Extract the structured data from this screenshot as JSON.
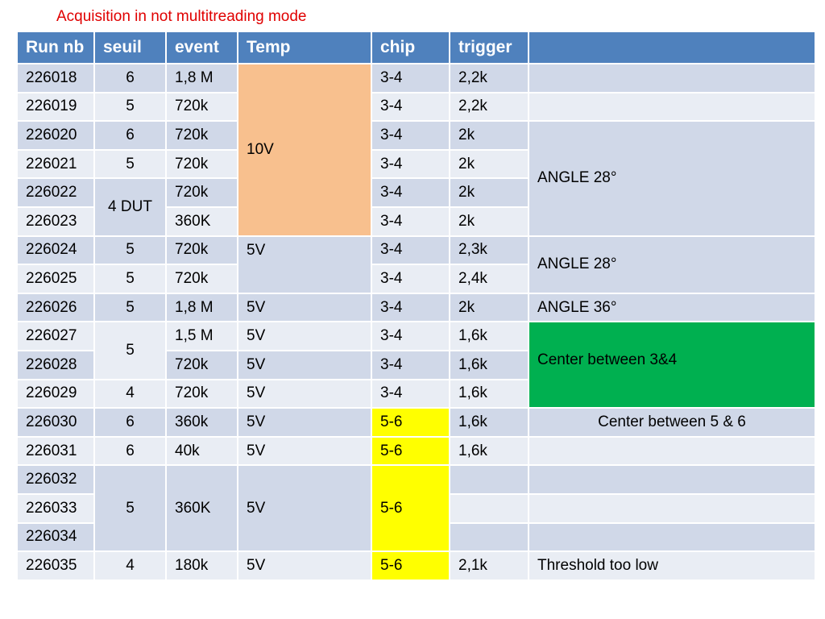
{
  "title": "Acquisition in not multitreading mode",
  "colors": {
    "header": "#4f81bd",
    "row_dark": "#d0d8e8",
    "row_light": "#e9edf4",
    "temp_10v": "#f8c08e",
    "chip_56": "#ffff00",
    "center_34": "#00b050",
    "title": "#e00000"
  },
  "headers": [
    "Run nb",
    "seuil",
    "event",
    "Temp",
    "chip",
    "trigger",
    ""
  ],
  "runs": [
    {
      "run": "226018",
      "seuil": "6",
      "event": "1,8 M",
      "chip": "3-4",
      "trigger": "2,2k"
    },
    {
      "run": "226019",
      "seuil": "5",
      "event": "720k",
      "chip": "3-4",
      "trigger": "2,2k"
    },
    {
      "run": "226020",
      "seuil": "6",
      "event": "720k",
      "chip": "3-4",
      "trigger": "2k"
    },
    {
      "run": "226021",
      "seuil": "5",
      "event": "720k",
      "chip": "3-4",
      "trigger": "2k"
    },
    {
      "run": "226022",
      "event": "720k",
      "chip": "3-4",
      "trigger": "2k"
    },
    {
      "run": "226023",
      "event": "360K",
      "chip": "3-4",
      "trigger": "2k"
    },
    {
      "run": "226024",
      "seuil": "5",
      "event": "720k",
      "temp": "5V",
      "chip": "3-4",
      "trigger": "2,3k"
    },
    {
      "run": "226025",
      "seuil": "5",
      "event": "720k",
      "chip": "3-4",
      "trigger": "2,4k"
    },
    {
      "run": "226026",
      "seuil": "5",
      "event": "1,8 M",
      "temp": "5V",
      "chip": "3-4",
      "trigger": "2k",
      "note": "ANGLE 36°"
    },
    {
      "run": "226027",
      "event": "1,5 M",
      "temp": "5V",
      "chip": "3-4",
      "trigger": "1,6k"
    },
    {
      "run": "226028",
      "event": "720k",
      "temp": "5V",
      "chip": "3-4",
      "trigger": "1,6k"
    },
    {
      "run": "226029",
      "seuil": "4",
      "event": "720k",
      "temp": "5V",
      "chip": "3-4",
      "trigger": "1,6k"
    },
    {
      "run": "226030",
      "seuil": "6",
      "event": "360k",
      "temp": "5V",
      "chip": "5-6",
      "trigger": "1,6k",
      "note": "Center between 5 & 6"
    },
    {
      "run": "226031",
      "seuil": "6",
      "event": "40k",
      "temp": "5V",
      "chip": "5-6",
      "trigger": "1,6k"
    },
    {
      "run": "226032"
    },
    {
      "run": "226033"
    },
    {
      "run": "226034"
    },
    {
      "run": "226035",
      "seuil": "4",
      "event": "180k",
      "temp": "5V",
      "chip": "5-6",
      "trigger": "2,1k",
      "note": "Threshold too low"
    }
  ],
  "merged": {
    "temp_10v": "10V",
    "seuil_4dut": "4 DUT",
    "note_angle28_a": "ANGLE 28°",
    "note_angle28_b": "ANGLE 28°",
    "note_center34": "Center between 3&4",
    "seuil_5_b": "5",
    "seuil_5_c": "5",
    "event_360k": "360K",
    "temp_5v": "5V",
    "chip_56": "5-6"
  }
}
